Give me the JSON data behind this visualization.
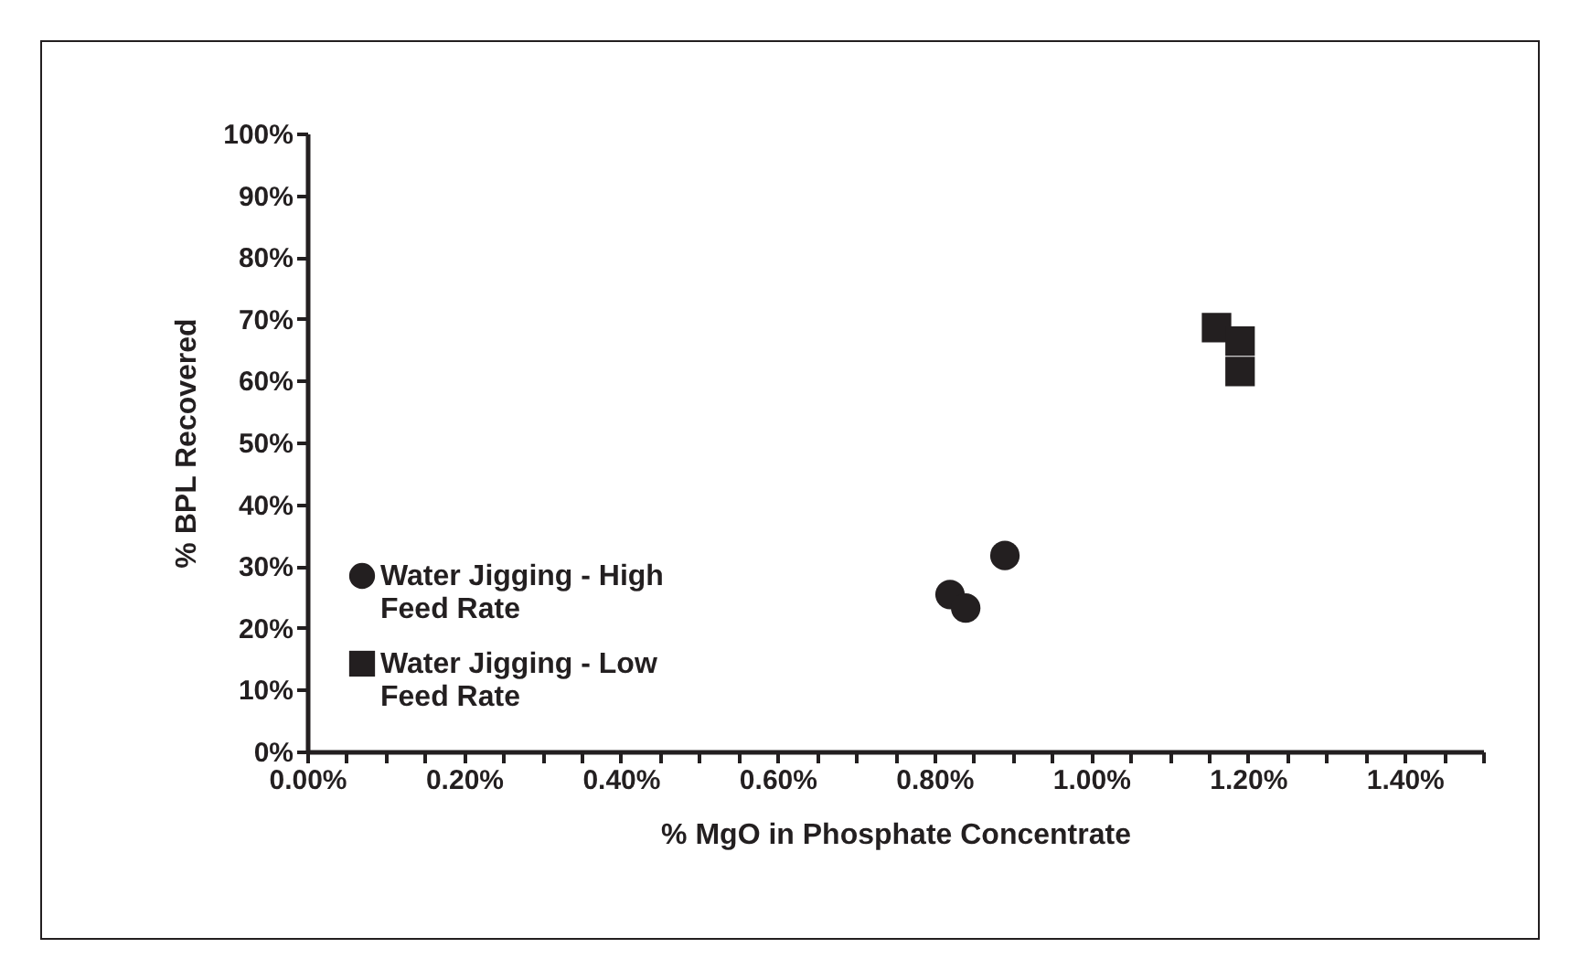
{
  "chart_data": {
    "type": "scatter",
    "xlabel": "% MgO in Phosphate Concentrate",
    "ylabel": "% BPL Recovered",
    "xlim": [
      0,
      1.5
    ],
    "ylim": [
      0,
      100
    ],
    "xticks": [
      {
        "value": 0,
        "label": "0.00%"
      },
      {
        "value": 0.05,
        "label": null
      },
      {
        "value": 0.1,
        "label": null
      },
      {
        "value": 0.15,
        "label": null
      },
      {
        "value": 0.2,
        "label": "0.20%"
      },
      {
        "value": 0.25,
        "label": null
      },
      {
        "value": 0.3,
        "label": null
      },
      {
        "value": 0.35,
        "label": null
      },
      {
        "value": 0.4,
        "label": "0.40%"
      },
      {
        "value": 0.45,
        "label": null
      },
      {
        "value": 0.5,
        "label": null
      },
      {
        "value": 0.55,
        "label": null
      },
      {
        "value": 0.6,
        "label": "0.60%"
      },
      {
        "value": 0.65,
        "label": null
      },
      {
        "value": 0.7,
        "label": null
      },
      {
        "value": 0.75,
        "label": null
      },
      {
        "value": 0.8,
        "label": "0.80%"
      },
      {
        "value": 0.85,
        "label": null
      },
      {
        "value": 0.9,
        "label": null
      },
      {
        "value": 0.95,
        "label": null
      },
      {
        "value": 1.0,
        "label": "1.00%"
      },
      {
        "value": 1.05,
        "label": null
      },
      {
        "value": 1.1,
        "label": null
      },
      {
        "value": 1.15,
        "label": null
      },
      {
        "value": 1.2,
        "label": "1.20%"
      },
      {
        "value": 1.25,
        "label": null
      },
      {
        "value": 1.3,
        "label": null
      },
      {
        "value": 1.35,
        "label": null
      },
      {
        "value": 1.4,
        "label": "1.40%"
      },
      {
        "value": 1.45,
        "label": null
      },
      {
        "value": 1.5,
        "label": null
      }
    ],
    "yticks": [
      {
        "value": 0,
        "label": "0%"
      },
      {
        "value": 10,
        "label": "10%"
      },
      {
        "value": 20,
        "label": "20%"
      },
      {
        "value": 30,
        "label": "30%"
      },
      {
        "value": 40,
        "label": "40%"
      },
      {
        "value": 50,
        "label": "50%"
      },
      {
        "value": 60,
        "label": "60%"
      },
      {
        "value": 70,
        "label": "70%"
      },
      {
        "value": 80,
        "label": "80%"
      },
      {
        "value": 90,
        "label": "90%"
      },
      {
        "value": 100,
        "label": "100%"
      }
    ],
    "grid": false,
    "legend": "left",
    "series": [
      {
        "name": "Water Jigging - High Feed Rate",
        "color": "#231f20",
        "marker": "circle",
        "x": [
          0.82,
          0.84,
          0.89
        ],
        "values": [
          25.4,
          23.2,
          31.7
        ]
      },
      {
        "name": "Water Jigging - Low Feed Rate",
        "color": "#231f20",
        "marker": "square",
        "x": [
          1.16,
          1.19,
          1.19
        ],
        "values": [
          68.6,
          66.4,
          61.5
        ]
      }
    ]
  }
}
